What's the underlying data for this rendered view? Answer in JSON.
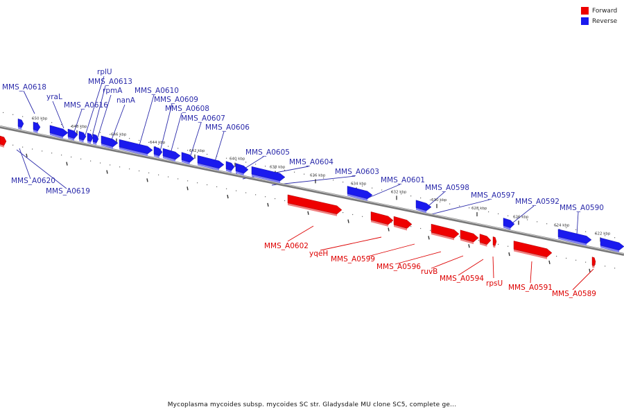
{
  "caption": "Mycoplasma mycoides subsp. mycoides SC str. Gladysdale MU clone SC5, complete ge...",
  "legend": [
    {
      "label": "Forward",
      "color": "#ee0000"
    },
    {
      "label": "Reverse",
      "color": "#1a1aee"
    }
  ],
  "colors": {
    "forward": "#ee0000",
    "forward_side": "#f08080",
    "reverse": "#1a1aee",
    "reverse_side": "#7f7ff5",
    "backbone": "#8c8c8c",
    "label_forward": "#dd0000",
    "label_reverse": "#2a2aaa"
  },
  "ticks": [
    "650 kbp",
    "648 kbp",
    "646 kbp",
    "644 kbp",
    "642 kbp",
    "640 kbp",
    "638 kbp",
    "636 kbp",
    "634 kbp",
    "632 kbp",
    "630 kbp",
    "628 kbp",
    "626 kbp",
    "624 kbp",
    "622 kbp"
  ],
  "reverse_genes": [
    "MMS_A0618",
    "yraL",
    "MMS_A0616",
    "rplU",
    "MMS_A0613",
    "rpmA",
    "nanA",
    "MMS_A0610",
    "MMS_A0609",
    "MMS_A0608",
    "MMS_A0607",
    "MMS_A0606",
    "MMS_A0605",
    "MMS_A0604",
    "MMS_A0603",
    "MMS_A0601",
    "MMS_A0598",
    "MMS_A0597",
    "MMS_A0592",
    "MMS_A0590",
    "MMS_A0620",
    "MMS_A0619"
  ],
  "forward_genes": [
    "MMS_A0602",
    "yqeH",
    "MMS_A0599",
    "MMS_A0596",
    "ruvB",
    "MMS_A0594",
    "rpsU",
    "MMS_A0591",
    "MMS_A0589"
  ]
}
